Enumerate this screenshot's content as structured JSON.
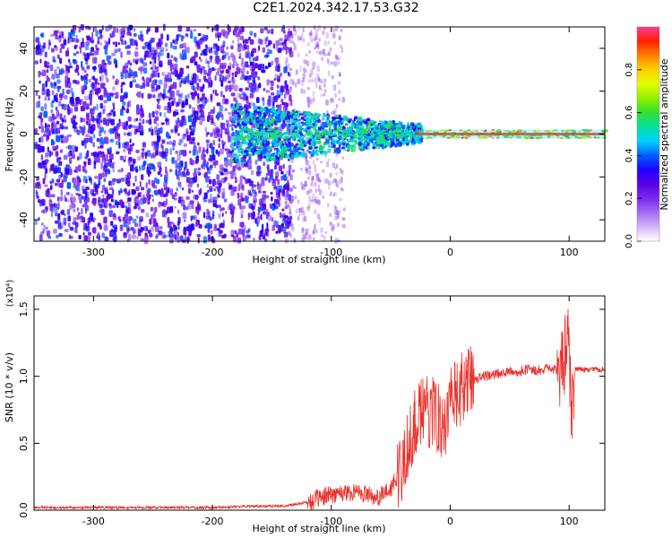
{
  "title": "C2E1.2024.342.17.53.G32",
  "chart_data": [
    {
      "type": "heatmap",
      "xlabel": "Height of straight line (km)",
      "ylabel": "Frequency (Hz)",
      "xlim": [
        -350,
        130
      ],
      "ylim": [
        -50,
        50
      ],
      "xticks": [
        -300,
        -200,
        -100,
        0,
        100
      ],
      "yticks": [
        -40,
        -20,
        0,
        20,
        40
      ],
      "colorbar": {
        "label": "Normalized spectral amplitude",
        "range": [
          0,
          1
        ],
        "ticks": [
          "0.0",
          "0.2",
          "0.4",
          "0.6",
          "0.8"
        ],
        "colors": [
          "#ffffff",
          "#d7b6f5",
          "#a56cf0",
          "#7a28f0",
          "#5a00e6",
          "#1f00ff",
          "#0060ff",
          "#00d0ff",
          "#00e0a0",
          "#30e030",
          "#90f000",
          "#e0ff00",
          "#ffd000",
          "#ff8000",
          "#ff2000",
          "#ff3b8a"
        ]
      },
      "description_regions": [
        {
          "x_range": [
            -350,
            -140
          ],
          "pattern": "noisy purple speckle across all frequencies"
        },
        {
          "x_range": [
            -185,
            -30
          ],
          "pattern": "broad blue/cyan band around 0 Hz"
        },
        {
          "x_range": [
            -30,
            130
          ],
          "pattern": "narrow strong line at 0 Hz (red/orange core)"
        }
      ]
    },
    {
      "type": "line",
      "xlabel": "Height of straight line (km)",
      "ylabel": "SNR (10 * v/v)",
      "y_multiplier": "(x10⁴)",
      "xlim": [
        -350,
        130
      ],
      "ylim": [
        0,
        1.6
      ],
      "xticks": [
        -300,
        -200,
        -100,
        0,
        100
      ],
      "yticks": [
        "0.0",
        "0.5",
        "1.0",
        "1.5"
      ],
      "line_color": "#e8322c",
      "series": [
        {
          "x": [
            -350,
            -300,
            -250,
            -200,
            -170,
            -140,
            -120,
            -100,
            -80,
            -60,
            -50,
            -40,
            -35,
            -30,
            -25,
            -20,
            -15,
            -10,
            -5,
            0,
            5,
            10,
            15,
            20,
            30,
            40,
            50,
            60,
            70,
            80,
            90,
            95,
            98,
            100,
            102,
            105,
            110,
            120,
            130
          ],
          "values": [
            0.02,
            0.02,
            0.02,
            0.02,
            0.03,
            0.03,
            0.06,
            0.12,
            0.14,
            0.1,
            0.15,
            0.35,
            0.5,
            0.65,
            0.7,
            0.72,
            0.75,
            0.7,
            0.65,
            0.78,
            0.85,
            0.9,
            0.95,
            0.98,
            1.0,
            1.02,
            1.03,
            1.04,
            1.05,
            1.05,
            1.05,
            1.06,
            1.3,
            1.2,
            0.7,
            1.05,
            1.05,
            1.05,
            1.05
          ]
        }
      ]
    }
  ]
}
